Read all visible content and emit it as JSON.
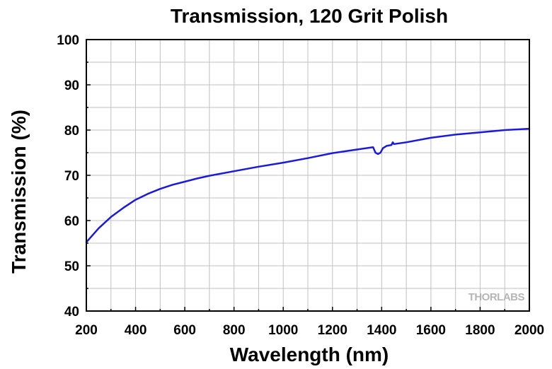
{
  "chart_data": {
    "type": "line",
    "title": "Transmission, 120 Grit Polish",
    "xlabel": "Wavelength (nm)",
    "ylabel": "Transmission (%)",
    "xlim": [
      200,
      2000
    ],
    "ylim": [
      40,
      100
    ],
    "x_ticks": [
      "200",
      "400",
      "600",
      "800",
      "1000",
      "1200",
      "1400",
      "1600",
      "1800",
      "2000"
    ],
    "y_ticks": [
      "40",
      "50",
      "60",
      "70",
      "80",
      "90",
      "100"
    ],
    "grid": true,
    "watermark": "THORLABS",
    "colors": {
      "series": "#1a1adc",
      "grid": "#c0c0c0",
      "watermark": "#b5b5b5"
    },
    "series": [
      {
        "x": [
          200,
          250,
          300,
          350,
          400,
          450,
          500,
          550,
          600,
          650,
          700,
          800,
          900,
          1000,
          1100,
          1200,
          1300,
          1350,
          1365,
          1375,
          1385,
          1395,
          1405,
          1420,
          1440,
          1445,
          1450,
          1500,
          1600,
          1700,
          1800,
          1900,
          2000
        ],
        "y": [
          55.2,
          58.3,
          60.8,
          62.8,
          64.6,
          65.9,
          67.0,
          67.9,
          68.6,
          69.3,
          69.9,
          70.9,
          71.9,
          72.8,
          73.8,
          74.9,
          75.7,
          76.1,
          76.2,
          75.0,
          74.7,
          75.0,
          76.0,
          76.5,
          76.7,
          77.3,
          76.9,
          77.3,
          78.3,
          79.0,
          79.5,
          80.0,
          80.3
        ]
      }
    ]
  }
}
